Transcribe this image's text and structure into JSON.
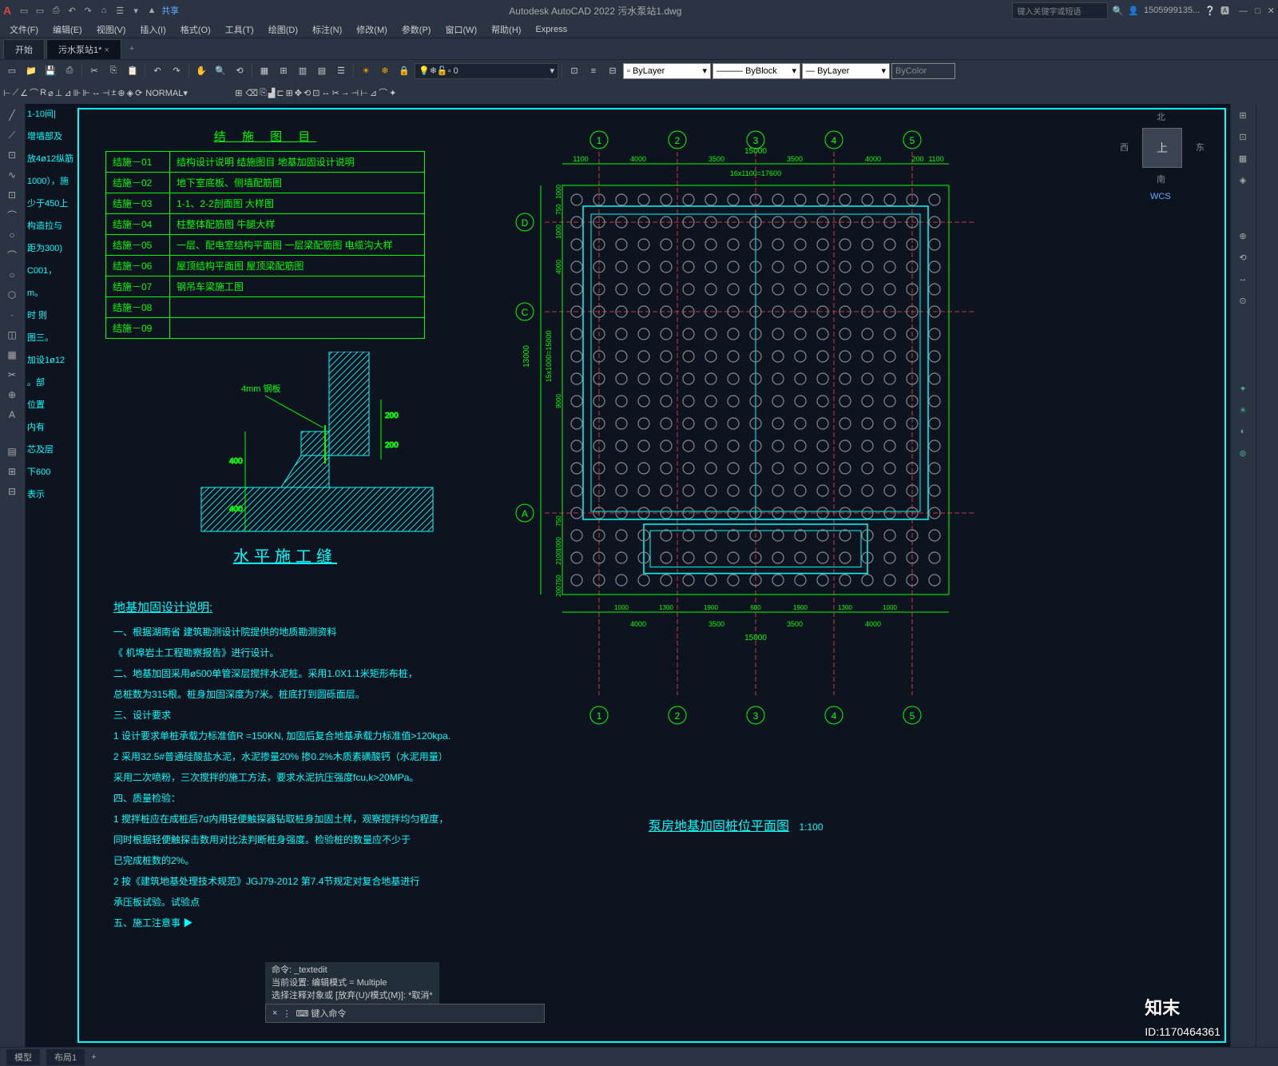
{
  "app": {
    "title": "Autodesk AutoCAD 2022   污水泵站1.dwg",
    "logo": "A"
  },
  "qat": [
    "▭",
    "▭",
    "⎙",
    "↶",
    "↷",
    "⌂",
    "☰",
    "▾",
    "▲",
    "共享"
  ],
  "search": {
    "placeholder": "键入关键字或短语",
    "icon": "🔍"
  },
  "user": {
    "name": "1505999135...",
    "icon": "👤"
  },
  "winbtns": {
    "help": "?",
    "min": "—",
    "max": "□",
    "close": "✕"
  },
  "menu": [
    "文件(F)",
    "编辑(E)",
    "视图(V)",
    "插入(I)",
    "格式(O)",
    "工具(T)",
    "绘图(D)",
    "标注(N)",
    "修改(M)",
    "参数(P)",
    "窗口(W)",
    "帮助(H)",
    "Express"
  ],
  "tabs": {
    "start": "开始",
    "file": "污水泵站1*",
    "plus": "+"
  },
  "layer_combo": "0",
  "props": {
    "bylayer": "ByLayer",
    "byblock": "ByBlock",
    "bycolor": "ByColor"
  },
  "normal": "NORMAL",
  "ltool_icons": [
    "╱",
    "⟋",
    "⊡",
    "○",
    "⌒",
    "∿",
    "⬡",
    "◫",
    "▦",
    "✂",
    "⊕",
    "A",
    "▤",
    "⊞",
    "⊟",
    "☰"
  ],
  "rtool_icons": [
    "⊞",
    "⊡",
    "▦",
    "◈",
    "⊕",
    "⟲",
    "↔",
    "⊙",
    "✦",
    "☀",
    "◐",
    "⊛"
  ],
  "ltext_lines": [
    "1-10间|",
    "",
    "增墙部及",
    "放4ø12纵筋",
    "1000），施",
    "少于450上",
    "",
    "构造拉与",
    "距为300)",
    "C001，",
    "",
    "m。",
    "",
    "",
    "时 则",
    "",
    "",
    "图三。",
    "加设1ø12",
    "",
    "。部",
    "",
    "位置",
    "",
    "内有",
    "芯及层",
    "下600",
    "",
    "表示"
  ],
  "viewcube": {
    "top": "上",
    "n": "北",
    "s": "南",
    "e": "东",
    "w": "西",
    "wcs": "WCS"
  },
  "status": {
    "model": "模型",
    "layout": "布局1"
  },
  "cmd": {
    "prompt": "⌨ 键入命令",
    "hist1": "命令: _textedit",
    "hist2": "当前设置: 编辑模式 = Multiple",
    "hist3": "选择注释对象或 [放弃(U)/模式(M)]: *取消*"
  },
  "table": {
    "title": "结 施 图 目",
    "rows": [
      [
        "结施－01",
        "结构设计说明   结施图目   地基加固设计说明"
      ],
      [
        "结施－02",
        "地下室底板、侧墙配筋图"
      ],
      [
        "结施－03",
        "1-1、2-2剖面图   大样图"
      ],
      [
        "结施－04",
        "柱整体配筋图   牛腿大样"
      ],
      [
        "结施－05",
        "一层、配电室结构平面图   一层梁配筋图   电缆沟大样"
      ],
      [
        "结施－06",
        "屋顶结构平面图   屋顶梁配筋图"
      ],
      [
        "结施－07",
        "钢吊车梁施工图"
      ],
      [
        "结施－08",
        ""
      ],
      [
        "结施－09",
        ""
      ]
    ]
  },
  "detail": {
    "title": "水平施工缝",
    "label_4mm": "4mm 钢板",
    "d400a": "400",
    "d400b": "400",
    "d200": "200",
    "d200b": "200"
  },
  "notes": {
    "title": "地基加固设计说明:",
    "lines": [
      "一、根据湖南省      建筑勘测设计院提供的地质勘测资料",
      "       《           机埠岩土工程勘察报告》进行设计。",
      "二、地基加固采用ø500单管深层搅拌水泥桩。采用1.0X1.1米矩形布桩，",
      "       总桩数为315根。桩身加固深度为7米。桩底打到圆砾面层。",
      "三、设计要求",
      "     1 设计要求单桩承载力标准值R =150KN, 加固后复合地基承载力标准值>120kpa.",
      "     2 采用32.5#普通硅酸盐水泥，水泥掺量20%  掺0.2%木质素磺酸钙（水泥用量）",
      "       采用二次喷粉，三次搅拌的施工方法，要求水泥抗压强度fcu,k>20MPa。",
      "四、质量检验：",
      "     1 搅拌桩应在成桩后7d内用轻便触探器钻取桩身加固土样，观察搅拌均匀程度，",
      "       同时根据轻便触探击数用对比法判断桩身强度。检验桩的数量应不少于",
      "       已完成桩数的2%。",
      "     2 按《建筑地基处理技术规范》JGJ79-2012   第7.4节规定对复合地基进行",
      "       承压板试验。试验点",
      "五、施工注意事   ▶"
    ]
  },
  "plan": {
    "title": "泵房地基加固桩位平面图",
    "scale": "1:100",
    "axis_labels": [
      "1",
      "2",
      "3",
      "4",
      "5"
    ],
    "axis_v": [
      "A",
      "C",
      "D"
    ],
    "dims_top": [
      "1100",
      "4000",
      "3500",
      "3500",
      "4000",
      "200",
      "1100"
    ],
    "dims_top_total": "15000",
    "dims_top_sub": "16x1100=17600",
    "dims_left": [
      "1000",
      "750",
      "1000",
      "4000",
      "9000",
      "750",
      "1000",
      "2100",
      "750",
      "200"
    ],
    "dims_left_total": "13000",
    "dims_left_sub": "15x1000=15000",
    "dims_left_sub2": "2x1000=2000",
    "dims_bot": [
      "1000",
      "1300",
      "1900",
      "600",
      "1900",
      "1300",
      "1000"
    ],
    "dims_bot2": [
      "4000",
      "3500",
      "3500",
      "4000"
    ],
    "dims_bot_total": "15000",
    "colors": {
      "green": "#00ff00",
      "cyan": "#00ffff",
      "red": "#ff4444",
      "gray": "#888888",
      "bg": "#0d1420"
    }
  },
  "watermark": {
    "brand": "知末",
    "id": "ID:1170464361"
  }
}
